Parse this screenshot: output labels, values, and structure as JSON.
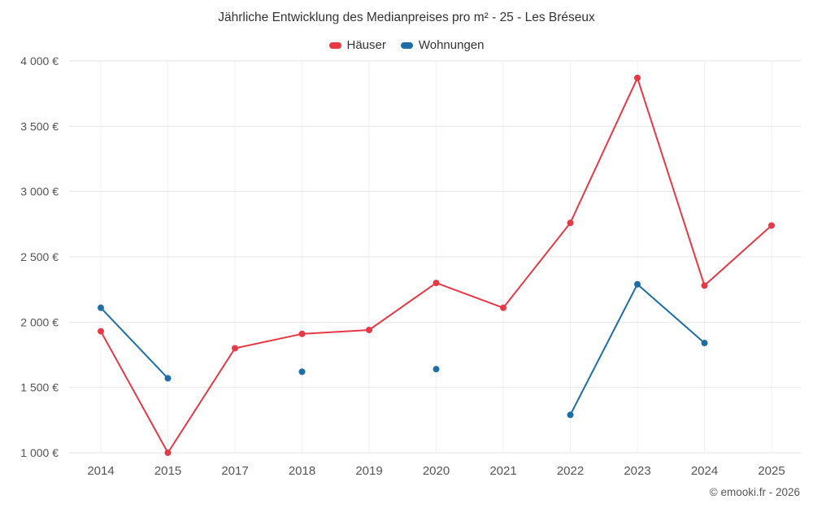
{
  "chart_data": {
    "type": "line",
    "title": "Jährliche Entwicklung des Medianpreises pro m² - 25 - Les Bréseux",
    "categories": [
      "2014",
      "2015",
      "2017",
      "2018",
      "2019",
      "2020",
      "2021",
      "2022",
      "2023",
      "2024",
      "2025"
    ],
    "series": [
      {
        "name": "Häuser",
        "color": "#e63946",
        "values": [
          1930,
          1000,
          1800,
          1910,
          1940,
          2300,
          2110,
          2760,
          3870,
          2280,
          2740
        ]
      },
      {
        "name": "Wohnungen",
        "color": "#1c6ea4",
        "values": [
          2110,
          1570,
          null,
          1620,
          null,
          1640,
          null,
          1290,
          2290,
          1840,
          null
        ]
      }
    ],
    "ylim": [
      1000,
      4000
    ],
    "ytick_step": 500,
    "ytick_labels": [
      "1 000 €",
      "1 500 €",
      "2 000 €",
      "2 500 €",
      "3 000 €",
      "3 500 €",
      "4 000 €"
    ],
    "y_suffix": "€",
    "grid": "horizontal",
    "legend_position": "top"
  },
  "footer": {
    "copyright": "© emooki.fr - 2026"
  }
}
